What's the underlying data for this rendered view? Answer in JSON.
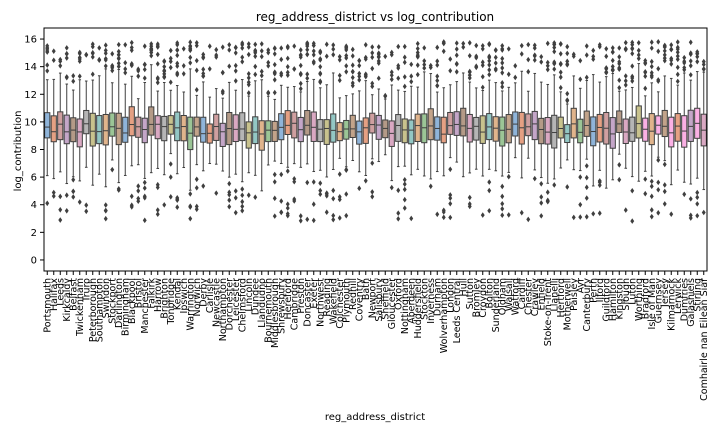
{
  "chart_data": {
    "type": "box",
    "title": "reg_address_district vs log_contribution",
    "xlabel": "reg_address_district",
    "ylabel": "log_contribution",
    "ylim": [
      -0.8,
      16.8
    ],
    "yticks": [
      0,
      2,
      4,
      6,
      8,
      10,
      12,
      14,
      16
    ],
    "grid": false,
    "categories": [
      "Portsmouth",
      "Halifax",
      "Leeds",
      "Kirkcaldy",
      "Belfast",
      "Twickenham",
      "Truro",
      "Peterborough",
      "Southampton",
      "Swindon",
      "Stockport",
      "Darlington",
      "Birmingham",
      "Blackpool",
      "Bristol",
      "Manchester",
      "Falkirk",
      "Harrow",
      "Brighton",
      "Tonbridge",
      "Kendal",
      "Ipswich",
      "Warrington",
      "Norwich",
      "Derby",
      "Carlisle",
      "Newcastle",
      "Northampton",
      "Dorchester",
      "Leicester",
      "Chelmsford",
      "Lincoln",
      "Dundee",
      "Llandudno",
      "Bournemouth",
      "Middlesbrough",
      "Shrewsbury",
      "Hereford",
      "Cambridge",
      "Preston",
      "Doncaster",
      "Exeter",
      "Northwest",
      "Reading",
      "Wakefield",
      "Colchester",
      "Plymouth",
      "Redhill",
      "Coventry",
      "Bath",
      "Newport",
      "Salisbury",
      "Sheffield",
      "Gloucester",
      "Oxford",
      "Nottingham",
      "Aberdeen",
      "Huddersfield",
      "Stockton",
      "Inverness",
      "Durham",
      "Wolverhampton",
      "London",
      "Leeds Central",
      "Hull",
      "Sutton",
      "Bromley",
      "Croydon",
      "Bolton",
      "Sunderland",
      "Oldham",
      "Walsall",
      "Watford",
      "Cardiff",
      "Chester",
      "Crawley",
      "Enfield",
      "Stoke-on-Trent",
      "Llanelli",
      "Hertford",
      "Motherwell",
      "Paisley",
      "Ayr",
      "Canterbury",
      "Perth",
      "Ilford",
      "Guildford",
      "Hamilton",
      "Kingston",
      "Slough",
      "Luton",
      "Worthing",
      "Bradford",
      "Isle of Man",
      "Guernsey",
      "Jersey",
      "Kilmarnock",
      "Lerwick",
      "Dumfries",
      "Galashiels",
      "Stirling",
      "Comhairle nan Eilean Siar"
    ],
    "y_range": [
      0,
      16
    ],
    "notes": "Box plot with outliers; one box per district; medians around 9-10"
  }
}
